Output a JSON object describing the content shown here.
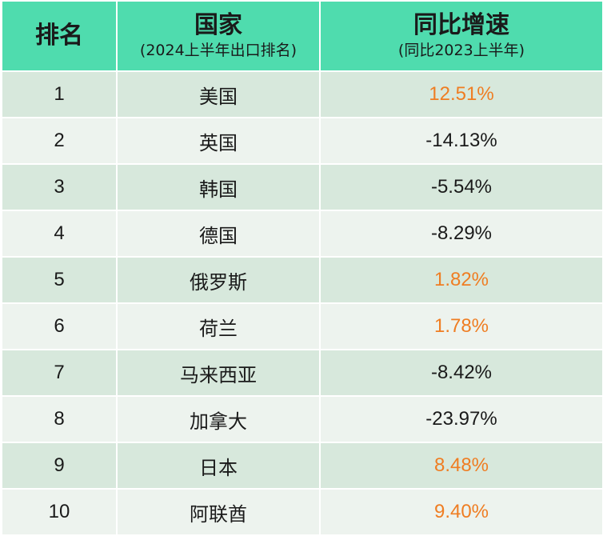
{
  "colors": {
    "header_bg": "#4fdcae",
    "row_dark": "#d7e8dc",
    "row_light": "#edf3ee",
    "positive_text": "#ef7d22",
    "negative_text": "#1a1a1a"
  },
  "header": {
    "rank": "排名",
    "country": "国家",
    "country_sub": "(2024上半年出口排名)",
    "growth": "同比增速",
    "growth_sub": "(同比2023上半年)"
  },
  "rows": [
    {
      "rank": "1",
      "country": "美国",
      "growth": "12.51%"
    },
    {
      "rank": "2",
      "country": "英国",
      "growth": "-14.13%"
    },
    {
      "rank": "3",
      "country": "韩国",
      "growth": "-5.54%"
    },
    {
      "rank": "4",
      "country": "德国",
      "growth": "-8.29%"
    },
    {
      "rank": "5",
      "country": "俄罗斯",
      "growth": "1.82%"
    },
    {
      "rank": "6",
      "country": "荷兰",
      "growth": "1.78%"
    },
    {
      "rank": "7",
      "country": "马来西亚",
      "growth": "-8.42%"
    },
    {
      "rank": "8",
      "country": "加拿大",
      "growth": "-23.97%"
    },
    {
      "rank": "9",
      "country": "日本",
      "growth": "8.48%"
    },
    {
      "rank": "10",
      "country": "阿联酋",
      "growth": "9.40%"
    }
  ],
  "chart_data": {
    "type": "table",
    "columns": [
      "排名",
      "国家",
      "同比增速"
    ],
    "rows": [
      [
        1,
        "美国",
        12.51
      ],
      [
        2,
        "英国",
        -14.13
      ],
      [
        3,
        "韩国",
        -5.54
      ],
      [
        4,
        "德国",
        -8.29
      ],
      [
        5,
        "俄罗斯",
        1.82
      ],
      [
        6,
        "荷兰",
        1.78
      ],
      [
        7,
        "马来西亚",
        -8.42
      ],
      [
        8,
        "加拿大",
        -23.97
      ],
      [
        9,
        "日本",
        8.48
      ],
      [
        10,
        "阿联酋",
        9.4
      ]
    ]
  }
}
